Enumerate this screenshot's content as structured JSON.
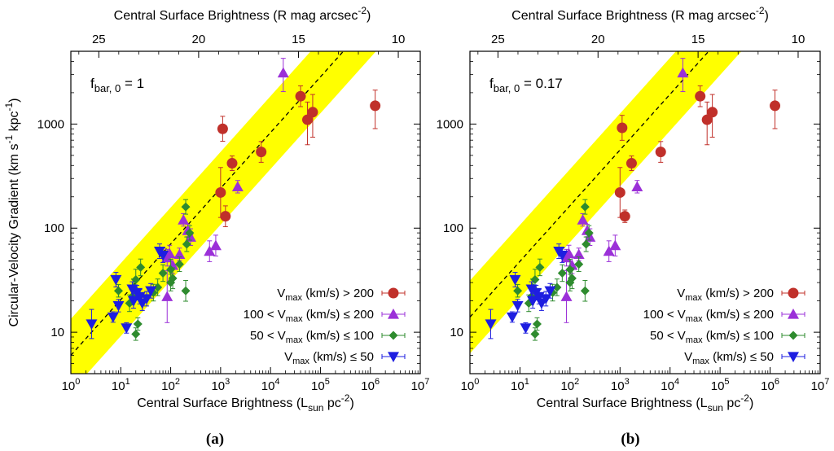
{
  "chart_data": [
    {
      "type": "scatter",
      "panel_label": "(a)",
      "annotation": {
        "base": "f",
        "sub": "bar, 0",
        "rest": " = 1"
      },
      "xlabel": {
        "base": "Central Surface Brightness (L",
        "sub": "sun",
        "mid": " pc",
        "sup": "-2",
        "end": ")"
      },
      "ylabel": {
        "a": "Circular-Velocity Gradient (km s",
        "sup1": "-1",
        "b": " kpc",
        "sup2": "-1",
        "c": ")"
      },
      "x2label": {
        "base": "Central Surface Brightness (R mag arcsec",
        "sup": "-2",
        "end": ")"
      },
      "xlim": [
        1,
        10000000
      ],
      "ylim": [
        4,
        5000
      ],
      "xscale": "log",
      "yscale": "log",
      "x_ticks": [
        1,
        10,
        100,
        1000,
        10000,
        100000,
        1000000,
        10000000
      ],
      "y_ticks": [
        10,
        100,
        1000
      ],
      "y_tick_labels": [
        "10",
        "100",
        "1000"
      ],
      "top_ticks": [
        25,
        20,
        15,
        10
      ],
      "top_tick_labels": [
        "25",
        "20",
        "15",
        "10"
      ],
      "band": {
        "intercept": 6,
        "slope": 0.535,
        "dex": 0.35,
        "color": "#ffff00",
        "line_color": "#000000"
      },
      "series": [
        {
          "name": "Vmax (km/s) > 200",
          "marker": "circle",
          "color": "#c0302a",
          "err_color": "#c0302a",
          "points": [
            [
              1100,
              900,
              0.12,
              0.12
            ],
            [
              1000,
              220,
              0.24,
              0.24
            ],
            [
              1250,
              130,
              0.1,
              0.1
            ],
            [
              1700,
              420,
              0.07,
              0.07
            ],
            [
              6500,
              540,
              0.1,
              0.1
            ],
            [
              40000,
              1850,
              0.1,
              0.1
            ],
            [
              55000,
              1100,
              0.17,
              0.24
            ],
            [
              70000,
              1300,
              0.17,
              0.24
            ],
            [
              1250000,
              1500,
              0.15,
              0.22
            ]
          ]
        },
        {
          "name": "100 < Vmax (km/s) ≤ 200",
          "marker": "triangle-up",
          "color": "#9b30d8",
          "err_color": "#9b30d8",
          "points": [
            [
              18000,
              3100,
              0.14,
              0.18
            ],
            [
              2200,
              250,
              0.06,
              0.06
            ],
            [
              800,
              68,
              0.1,
              0.1
            ],
            [
              600,
              60,
              0.1,
              0.1
            ],
            [
              180,
              120,
              0.06,
              0.06
            ],
            [
              220,
              95,
              0.06,
              0.06
            ],
            [
              250,
              82,
              0.08,
              0.08
            ],
            [
              150,
              56,
              0.06,
              0.06
            ],
            [
              95,
              57,
              0.08,
              0.08
            ],
            [
              85,
              52,
              0.08,
              0.08
            ],
            [
              110,
              44,
              0.08,
              0.08
            ],
            [
              85,
              22,
              0.25,
              0.25
            ]
          ]
        },
        {
          "name": "50 < Vmax (km/s) ≤ 100",
          "marker": "diamond",
          "color": "#2e8b2e",
          "err_color": "#2e8b2e",
          "points": [
            [
              200,
              160,
              0.07,
              0.07
            ],
            [
              210,
              70,
              0.07,
              0.07
            ],
            [
              240,
              90,
              0.07,
              0.07
            ],
            [
              150,
              45,
              0.07,
              0.07
            ],
            [
              100,
              40,
              0.1,
              0.1
            ],
            [
              110,
              33,
              0.1,
              0.1
            ],
            [
              100,
              30,
              0.08,
              0.08
            ],
            [
              70,
              37,
              0.08,
              0.08
            ],
            [
              55,
              27,
              0.08,
              0.08
            ],
            [
              45,
              24,
              0.08,
              0.08
            ],
            [
              25,
              42,
              0.08,
              0.08
            ],
            [
              20,
              32,
              0.1,
              0.1
            ],
            [
              18,
              27,
              0.08,
              0.08
            ],
            [
              17,
              22,
              0.08,
              0.08
            ],
            [
              15,
              19,
              0.08,
              0.08
            ],
            [
              22,
              12,
              0.06,
              0.06
            ],
            [
              20,
              9.6,
              0.06,
              0.06
            ],
            [
              9,
              25,
              0.06,
              0.06
            ],
            [
              200,
              25,
              0.1,
              0.1
            ]
          ]
        },
        {
          "name": "Vmax (km/s) ≤ 50",
          "marker": "triangle-down",
          "color": "#1e1ee0",
          "err_color": "#1e1ee0",
          "points": [
            [
              2.6,
              12,
              0.14,
              0.14
            ],
            [
              7,
              14,
              0.05,
              0.05
            ],
            [
              8,
              32,
              0.07,
              0.07
            ],
            [
              9,
              18,
              0.06,
              0.06
            ],
            [
              13,
              11,
              0.05,
              0.05
            ],
            [
              17,
              26,
              0.07,
              0.07
            ],
            [
              21,
              24,
              0.07,
              0.07
            ],
            [
              24,
              22,
              0.07,
              0.07
            ],
            [
              27,
              19,
              0.07,
              0.07
            ],
            [
              33,
              21,
              0.07,
              0.07
            ],
            [
              40,
              25,
              0.07,
              0.07
            ],
            [
              60,
              60,
              0.07,
              0.07
            ],
            [
              70,
              55,
              0.07,
              0.07
            ],
            [
              18,
              20,
              0.07,
              0.07
            ]
          ]
        }
      ],
      "legend": {
        "position": "bottom-right",
        "entries": [
          {
            "pre": "V",
            "sub": "max",
            "post": " (km/s) > 200"
          },
          {
            "pre": "100 < V",
            "sub": "max",
            "post": " (km/s) ≤ 200"
          },
          {
            "pre": "50 < V",
            "sub": "max",
            "post": " (km/s) ≤ 100"
          },
          {
            "pre": "V",
            "sub": "max",
            "post": " (km/s) ≤ 50"
          }
        ]
      }
    },
    {
      "type": "scatter",
      "panel_label": "(b)",
      "annotation": {
        "base": "f",
        "sub": "bar, 0",
        "rest": " = 0.17"
      },
      "xlabel": {
        "base": "Central Surface Brightness (L",
        "sub": "sun",
        "mid": " pc",
        "sup": "-2",
        "end": ")"
      },
      "x2label": {
        "base": "Central Surface Brightness (R mag arcsec",
        "sup": "-2",
        "end": ")"
      },
      "xlim": [
        1,
        10000000
      ],
      "ylim": [
        4,
        5000
      ],
      "xscale": "log",
      "yscale": "log",
      "x_ticks": [
        1,
        10,
        100,
        1000,
        10000,
        100000,
        1000000,
        10000000
      ],
      "y_ticks": [
        10,
        100,
        1000
      ],
      "y_tick_labels": [
        "10",
        "100",
        "1000"
      ],
      "top_ticks": [
        25,
        20,
        15,
        10
      ],
      "top_tick_labels": [
        "25",
        "20",
        "15",
        "10"
      ],
      "band": {
        "intercept": 14,
        "slope": 0.535,
        "dex": 0.35,
        "color": "#ffff00",
        "line_color": "#000000"
      },
      "series": [
        {
          "name": "Vmax (km/s) > 200",
          "marker": "circle",
          "color": "#c0302a",
          "err_color": "#c0302a",
          "points": [
            [
              1100,
              920,
              0.12,
              0.12
            ],
            [
              1000,
              220,
              0.24,
              0.24
            ],
            [
              1250,
              130,
              0.06,
              0.06
            ],
            [
              1700,
              420,
              0.07,
              0.07
            ],
            [
              6500,
              540,
              0.1,
              0.1
            ],
            [
              40000,
              1850,
              0.1,
              0.1
            ],
            [
              55000,
              1100,
              0.17,
              0.24
            ],
            [
              70000,
              1300,
              0.17,
              0.24
            ],
            [
              1250000,
              1500,
              0.15,
              0.22
            ]
          ]
        },
        {
          "name": "100 < Vmax (km/s) ≤ 200",
          "marker": "triangle-up",
          "color": "#9b30d8",
          "err_color": "#9b30d8",
          "points": [
            [
              18000,
              3100,
              0.14,
              0.18
            ],
            [
              2200,
              250,
              0.06,
              0.06
            ],
            [
              800,
              68,
              0.1,
              0.1
            ],
            [
              600,
              60,
              0.1,
              0.1
            ],
            [
              180,
              120,
              0.06,
              0.06
            ],
            [
              220,
              95,
              0.06,
              0.06
            ],
            [
              250,
              82,
              0.08,
              0.08
            ],
            [
              150,
              56,
              0.06,
              0.06
            ],
            [
              95,
              57,
              0.08,
              0.08
            ],
            [
              85,
              52,
              0.08,
              0.08
            ],
            [
              110,
              44,
              0.08,
              0.08
            ],
            [
              85,
              22,
              0.25,
              0.25
            ]
          ]
        },
        {
          "name": "50 < Vmax (km/s) ≤ 100",
          "marker": "diamond",
          "color": "#2e8b2e",
          "err_color": "#2e8b2e",
          "points": [
            [
              200,
              160,
              0.07,
              0.07
            ],
            [
              210,
              70,
              0.07,
              0.07
            ],
            [
              240,
              90,
              0.07,
              0.07
            ],
            [
              150,
              45,
              0.07,
              0.07
            ],
            [
              100,
              40,
              0.1,
              0.1
            ],
            [
              110,
              33,
              0.1,
              0.1
            ],
            [
              100,
              30,
              0.08,
              0.08
            ],
            [
              70,
              37,
              0.08,
              0.08
            ],
            [
              55,
              27,
              0.08,
              0.08
            ],
            [
              45,
              24,
              0.08,
              0.08
            ],
            [
              25,
              42,
              0.08,
              0.08
            ],
            [
              20,
              32,
              0.1,
              0.1
            ],
            [
              18,
              27,
              0.08,
              0.08
            ],
            [
              17,
              22,
              0.08,
              0.08
            ],
            [
              15,
              19,
              0.08,
              0.08
            ],
            [
              22,
              12,
              0.06,
              0.06
            ],
            [
              20,
              9.6,
              0.06,
              0.06
            ],
            [
              9,
              25,
              0.06,
              0.06
            ],
            [
              200,
              25,
              0.1,
              0.1
            ]
          ]
        },
        {
          "name": "Vmax (km/s) ≤ 50",
          "marker": "triangle-down",
          "color": "#1e1ee0",
          "err_color": "#1e1ee0",
          "points": [
            [
              2.6,
              12,
              0.14,
              0.14
            ],
            [
              7,
              14,
              0.05,
              0.05
            ],
            [
              8,
              32,
              0.07,
              0.07
            ],
            [
              9,
              18,
              0.06,
              0.06
            ],
            [
              13,
              11,
              0.05,
              0.05
            ],
            [
              17,
              26,
              0.07,
              0.07
            ],
            [
              21,
              24,
              0.07,
              0.07
            ],
            [
              24,
              22,
              0.07,
              0.07
            ],
            [
              27,
              19,
              0.07,
              0.07
            ],
            [
              33,
              21,
              0.07,
              0.07
            ],
            [
              40,
              25,
              0.07,
              0.07
            ],
            [
              60,
              60,
              0.07,
              0.07
            ],
            [
              70,
              55,
              0.07,
              0.07
            ],
            [
              18,
              20,
              0.07,
              0.07
            ]
          ]
        }
      ],
      "legend": {
        "position": "bottom-right",
        "entries": [
          {
            "pre": "V",
            "sub": "max",
            "post": " (km/s) > 200"
          },
          {
            "pre": "100 < V",
            "sub": "max",
            "post": " (km/s) ≤ 200"
          },
          {
            "pre": "50 < V",
            "sub": "max",
            "post": " (km/s) ≤ 100"
          },
          {
            "pre": "V",
            "sub": "max",
            "post": " (km/s) ≤ 50"
          }
        ]
      }
    }
  ]
}
